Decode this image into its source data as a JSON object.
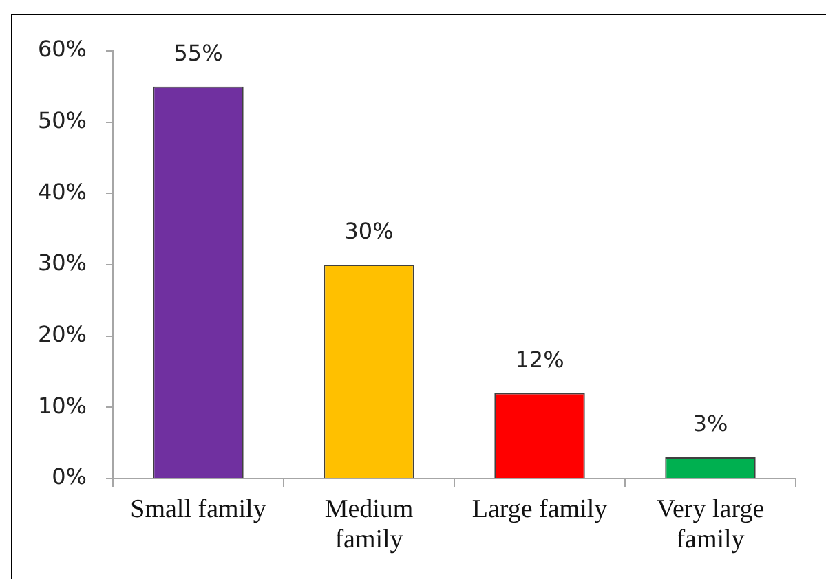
{
  "chart_data": {
    "type": "bar",
    "categories": [
      "Small family",
      "Medium family",
      "Large family",
      "Very large family"
    ],
    "values": [
      55,
      30,
      12,
      3
    ],
    "colors": [
      "#7030a0",
      "#ffc000",
      "#ff0000",
      "#00b050"
    ],
    "value_labels": [
      "55%",
      "30%",
      "12%",
      "3%"
    ],
    "ylim": [
      0,
      60
    ],
    "yticks": [
      {
        "value": 0,
        "label": "0%"
      },
      {
        "value": 10,
        "label": "10%"
      },
      {
        "value": 20,
        "label": "20%"
      },
      {
        "value": 30,
        "label": "30%"
      },
      {
        "value": 40,
        "label": "40%"
      },
      {
        "value": 50,
        "label": "50%"
      },
      {
        "value": 60,
        "label": "60%"
      }
    ],
    "grid": false,
    "legend": false
  }
}
